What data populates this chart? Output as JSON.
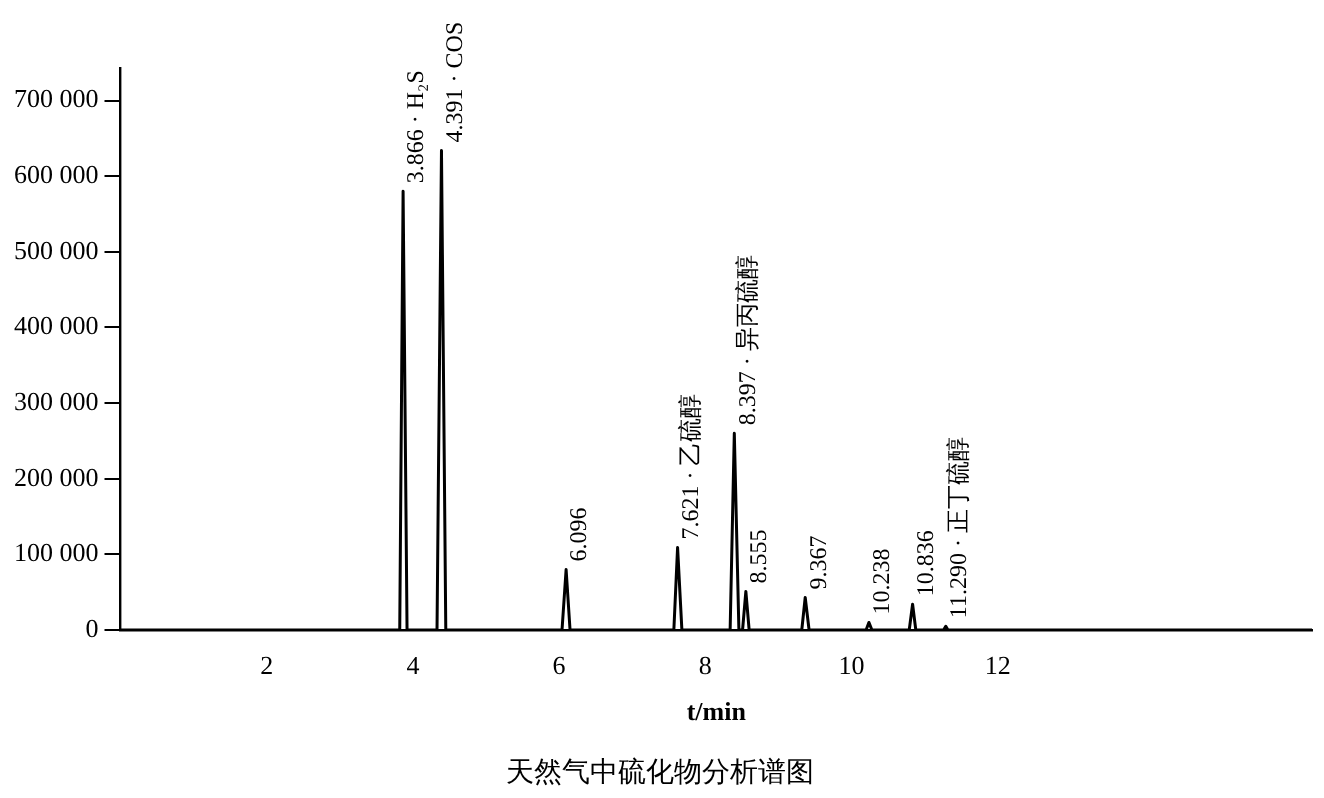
{
  "chart_data": {
    "type": "line",
    "title": "天然气中硫化物分析谱图",
    "xlabel": "t/min",
    "x": [
      0,
      3.5,
      3.82,
      3.866,
      3.92,
      4.33,
      4.391,
      4.45,
      6.04,
      6.096,
      6.15,
      7.57,
      7.621,
      7.68,
      8.34,
      8.397,
      8.46,
      8.51,
      8.555,
      8.6,
      9.32,
      9.367,
      9.42,
      10.2,
      10.238,
      10.28,
      10.79,
      10.836,
      10.88,
      11.26,
      11.29,
      11.32,
      16.3
    ],
    "values": [
      0,
      0,
      0,
      580000,
      0,
      0,
      634000,
      0,
      0,
      80000,
      0,
      0,
      109000,
      0,
      0,
      260000,
      0,
      0,
      51000,
      0,
      0,
      43000,
      0,
      0,
      10000,
      0,
      0,
      34000,
      0,
      0,
      5000,
      0,
      0
    ],
    "color": "#000000",
    "marker": "none",
    "line_style": "solid",
    "grid": false,
    "legend": false,
    "xlim": [
      0,
      16.3
    ],
    "xticks": [
      2,
      4,
      6,
      8,
      10,
      12
    ],
    "ylim": [
      0,
      743000
    ],
    "yticks": [
      {
        "value": 0,
        "label": "0"
      },
      {
        "value": 100000,
        "label": "100 000"
      },
      {
        "value": 200000,
        "label": "200 000"
      },
      {
        "value": 300000,
        "label": "300 000"
      },
      {
        "value": 400000,
        "label": "400 000"
      },
      {
        "value": 500000,
        "label": "500 000"
      },
      {
        "value": 600000,
        "label": "600 000"
      },
      {
        "value": 700000,
        "label": "700 000"
      }
    ],
    "annotations": [
      {
        "text": "3.866 · H₂S",
        "x": 3.866,
        "y": 580000
      },
      {
        "text": "4.391 · COS",
        "x": 4.391,
        "y": 634000
      },
      {
        "text": "6.096",
        "x": 6.096,
        "y": 80000
      },
      {
        "text": "7.621 · 乙硫醇",
        "x": 7.621,
        "y": 109000
      },
      {
        "text": "8.397 · 异丙硫醇",
        "x": 8.397,
        "y": 260000
      },
      {
        "text": "8.555",
        "x": 8.555,
        "y": 51000
      },
      {
        "text": "9.367",
        "x": 9.367,
        "y": 43000
      },
      {
        "text": "10.238",
        "x": 10.238,
        "y": 10000
      },
      {
        "text": "10.836",
        "x": 10.836,
        "y": 34000
      },
      {
        "text": "11.290 · 正丁硫醇",
        "x": 11.29,
        "y": 5000
      }
    ]
  }
}
